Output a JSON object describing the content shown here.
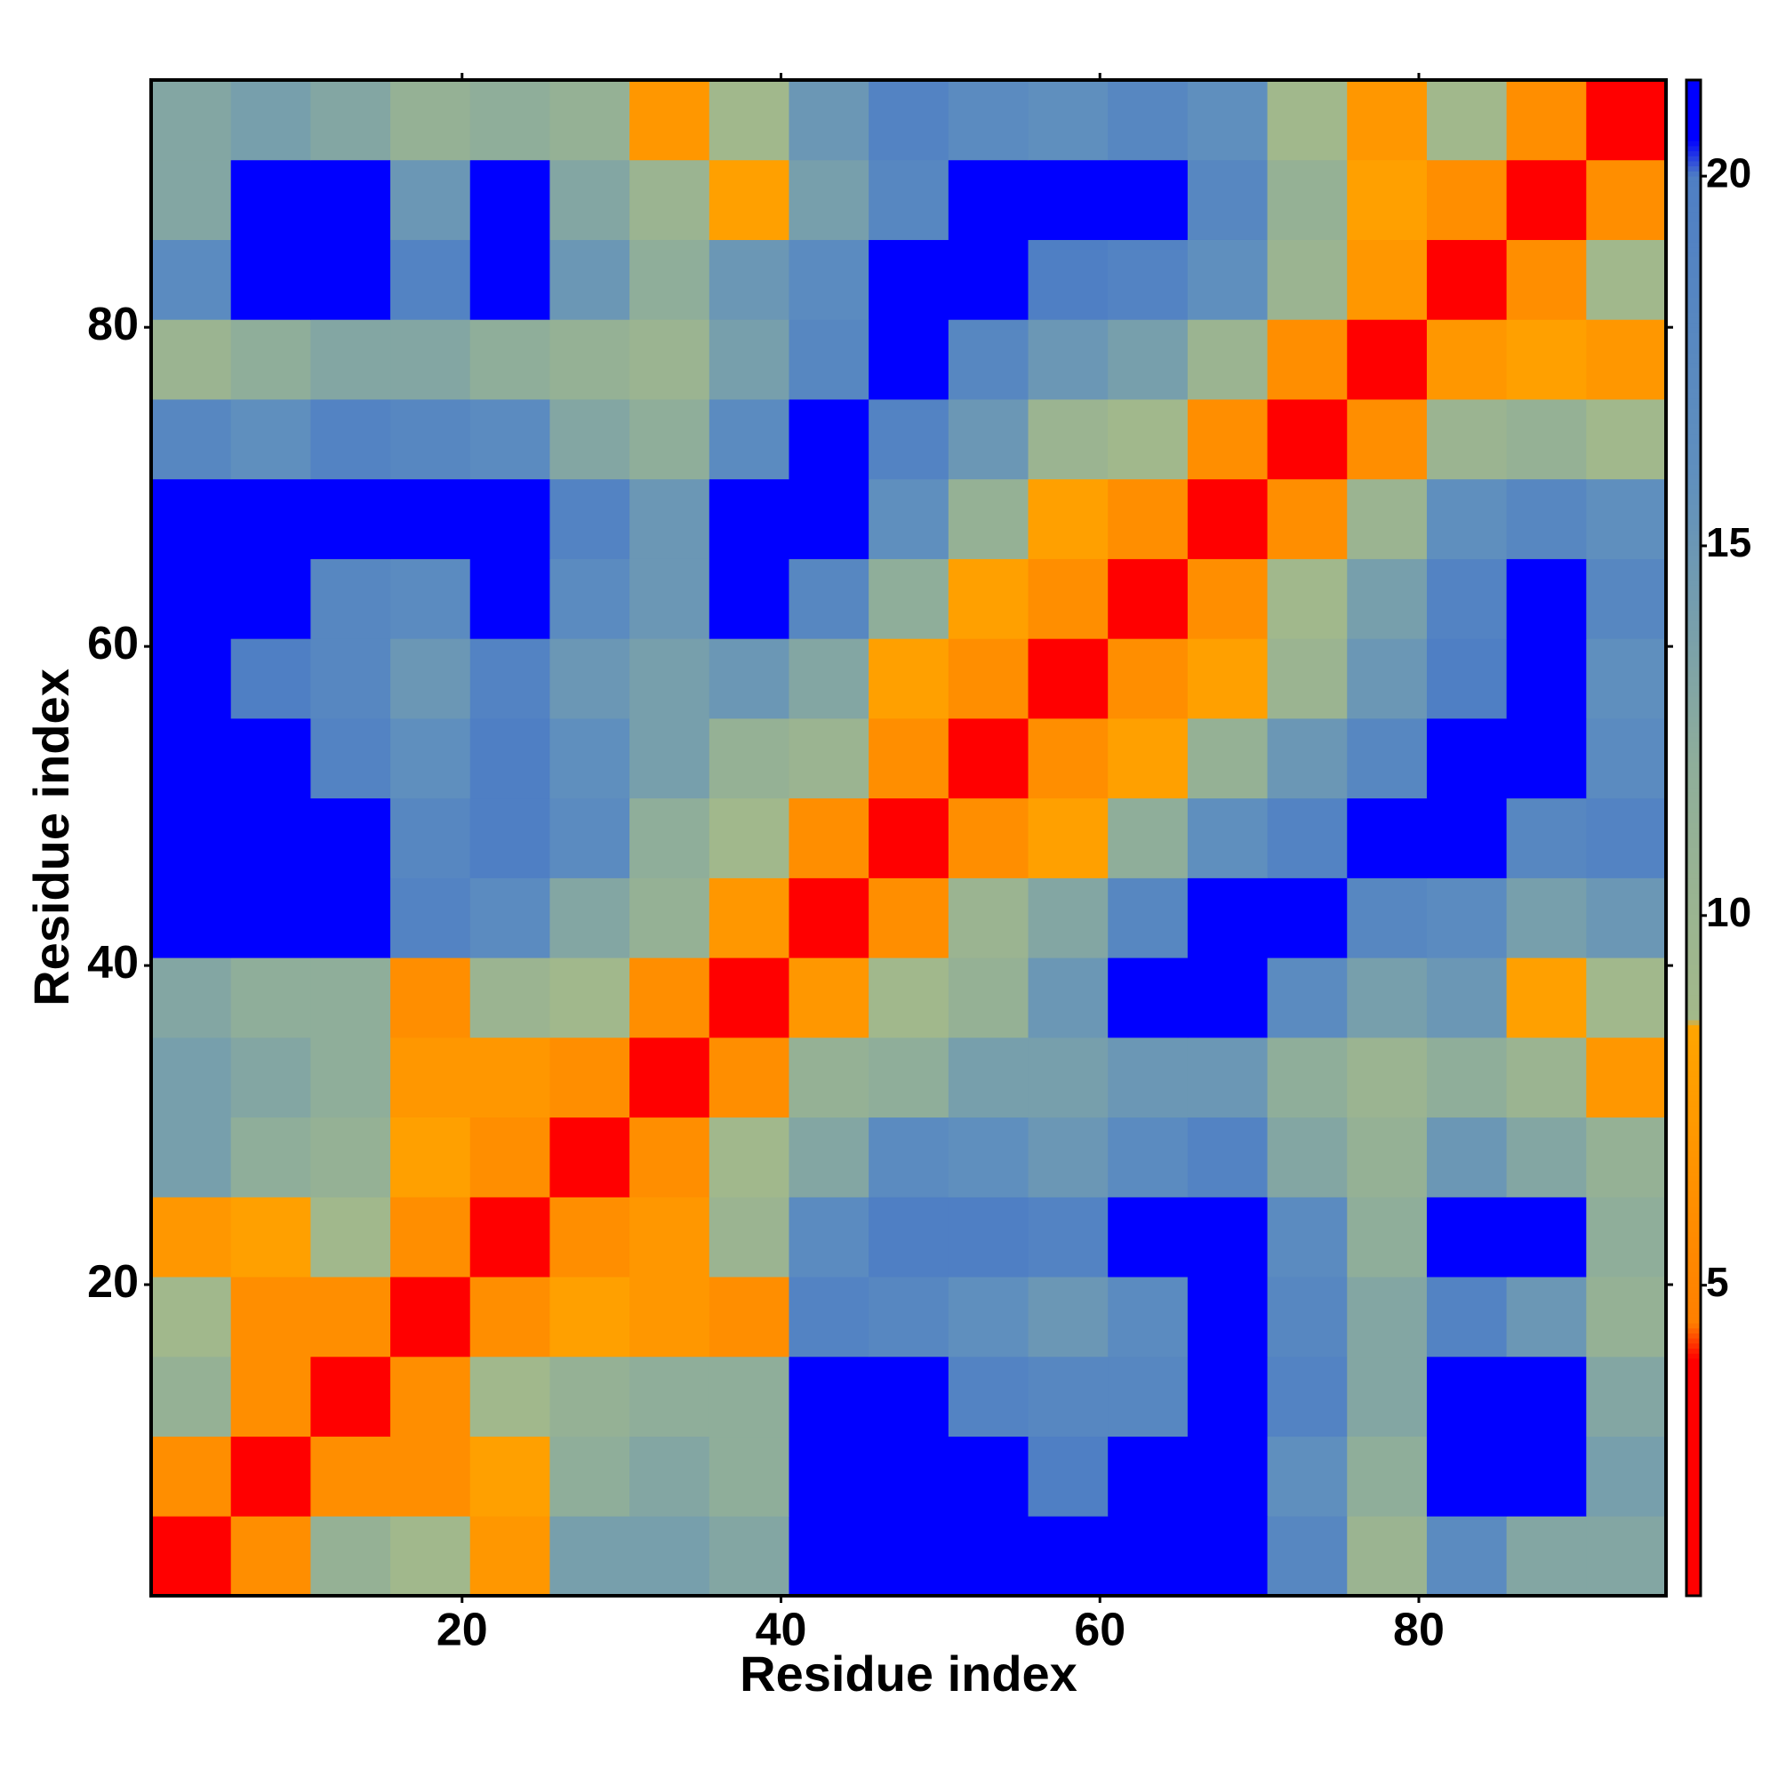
{
  "chart_data": {
    "type": "heatmap",
    "xlabel": "Residue index",
    "ylabel": "Residue index",
    "xlim": [
      0.5,
      95.5
    ],
    "ylim": [
      0.5,
      95.5
    ],
    "xticks": [
      20,
      40,
      60,
      80
    ],
    "yticks": [
      20,
      40,
      60,
      80
    ],
    "xbins": [
      0.5,
      5.5,
      10.5,
      15.5,
      20.5,
      25.5,
      30.5,
      35.5,
      40.5,
      45.5,
      50.5,
      55.5,
      60.5,
      65.5,
      70.5,
      75.5,
      80.5,
      85.5,
      90.5,
      95.5
    ],
    "ybins": [
      0.5,
      5.5,
      10.5,
      15.5,
      20.5,
      25.5,
      30.5,
      35.5,
      40.5,
      45.5,
      50.5,
      55.5,
      60.5,
      65.5,
      70.5,
      75.5,
      80.5,
      85.5,
      90.5,
      95.5
    ],
    "z": [
      [
        3,
        6,
        11,
        9,
        7,
        14,
        14,
        13,
        21,
        21,
        21,
        21,
        21,
        21,
        18,
        10,
        17,
        13,
        13
      ],
      [
        6,
        3,
        6,
        6,
        8,
        12,
        13,
        12,
        21,
        21,
        21,
        20,
        21,
        21,
        16,
        12,
        21,
        21,
        14
      ],
      [
        11,
        6,
        3,
        6,
        9,
        11,
        12,
        12,
        21,
        21,
        19,
        18,
        18,
        21,
        19,
        13,
        21,
        21,
        13
      ],
      [
        9,
        6,
        6,
        3,
        6,
        8,
        7,
        6,
        19,
        18,
        16,
        15,
        17,
        21,
        18,
        13,
        19,
        15,
        11
      ],
      [
        7,
        8,
        9,
        6,
        3,
        6,
        7,
        10,
        17,
        20,
        20,
        19,
        21,
        21,
        17,
        12,
        21,
        21,
        12
      ],
      [
        14,
        12,
        11,
        8,
        6,
        3,
        6,
        9,
        13,
        17,
        16,
        15,
        17,
        19,
        13,
        11,
        15,
        13,
        11
      ],
      [
        14,
        13,
        12,
        7,
        7,
        6,
        3,
        6,
        11,
        12,
        14,
        14,
        15,
        15,
        12,
        10,
        12,
        10,
        7
      ],
      [
        13,
        12,
        12,
        6,
        10,
        9,
        6,
        3,
        7,
        9,
        11,
        15,
        21,
        21,
        17,
        14,
        15,
        8,
        9
      ],
      [
        21,
        21,
        21,
        19,
        17,
        13,
        11,
        7,
        3,
        6,
        10,
        13,
        18,
        21,
        21,
        18,
        17,
        14,
        15
      ],
      [
        21,
        21,
        21,
        18,
        20,
        17,
        12,
        9,
        6,
        3,
        6,
        8,
        12,
        16,
        19,
        21,
        21,
        18,
        19
      ],
      [
        21,
        21,
        19,
        16,
        20,
        16,
        14,
        11,
        10,
        6,
        3,
        6,
        8,
        11,
        15,
        18,
        21,
        21,
        17
      ],
      [
        21,
        20,
        18,
        15,
        19,
        15,
        14,
        15,
        13,
        8,
        6,
        3,
        6,
        8,
        10,
        15,
        20,
        21,
        16
      ],
      [
        21,
        21,
        18,
        17,
        21,
        17,
        15,
        21,
        18,
        12,
        8,
        6,
        3,
        6,
        9,
        14,
        19,
        21,
        18
      ],
      [
        21,
        21,
        21,
        21,
        21,
        19,
        15,
        21,
        21,
        16,
        11,
        8,
        6,
        3,
        6,
        10,
        16,
        18,
        16
      ],
      [
        18,
        16,
        19,
        18,
        17,
        13,
        12,
        17,
        21,
        19,
        15,
        10,
        9,
        6,
        3,
        6,
        10,
        11,
        9
      ],
      [
        10,
        12,
        13,
        13,
        12,
        11,
        10,
        14,
        18,
        21,
        18,
        15,
        14,
        10,
        6,
        3,
        7,
        8,
        7
      ],
      [
        17,
        21,
        21,
        19,
        21,
        15,
        12,
        15,
        17,
        21,
        21,
        20,
        19,
        16,
        10,
        7,
        3,
        6,
        9
      ],
      [
        13,
        21,
        21,
        15,
        21,
        13,
        10,
        8,
        14,
        18,
        21,
        21,
        21,
        18,
        11,
        8,
        6,
        3,
        6
      ],
      [
        13,
        14,
        13,
        11,
        12,
        11,
        7,
        9,
        15,
        19,
        17,
        16,
        18,
        16,
        9,
        7,
        9,
        6,
        3
      ]
    ],
    "colorscale": [
      [
        0.8,
        "#ff0000"
      ],
      [
        4,
        "#ff0000"
      ],
      [
        4.5,
        "#ff8000"
      ],
      [
        8.5,
        "#ffa500"
      ],
      [
        8.6,
        "#a3b98a"
      ],
      [
        12,
        "#8fae9a"
      ],
      [
        16,
        "#5f8fbe"
      ],
      [
        20,
        "#4f7fc4"
      ],
      [
        20.5,
        "#0000ff"
      ],
      [
        21.3,
        "#0000ff"
      ]
    ],
    "colorbar": {
      "lim": [
        0.8,
        21.3
      ],
      "ticks": [
        5,
        10,
        15,
        20
      ]
    }
  }
}
